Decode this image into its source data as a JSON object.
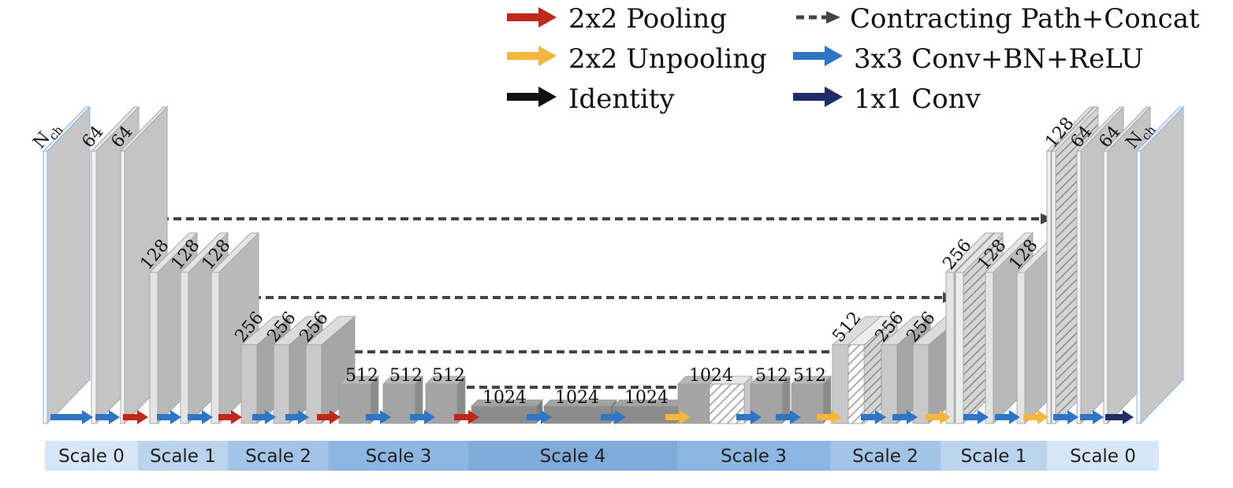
{
  "legend": {
    "pooling": {
      "label": "2x2 Pooling",
      "color": "#c0281b"
    },
    "unpooling": {
      "label": "2x2 Unpooling",
      "color": "#f2b73c"
    },
    "identity": {
      "label": "Identity",
      "color": "#111111"
    },
    "contracting": {
      "label": "Contracting Path+Concat",
      "color": "#444444"
    },
    "conv3": {
      "label": "3x3 Conv+BN+ReLU",
      "color": "#2e76c4"
    },
    "conv1": {
      "label": "1x1 Conv",
      "color": "#1f2d66"
    }
  },
  "channels": {
    "nch": "N",
    "nch_sub": "ch",
    "enc0": [
      "64",
      "64"
    ],
    "enc1": [
      "128",
      "128",
      "128"
    ],
    "enc2": [
      "256",
      "256",
      "256"
    ],
    "enc3": [
      "512",
      "512",
      "512"
    ],
    "bottleneck": [
      "1024",
      "1024",
      "1024"
    ],
    "dec3": [
      "1024",
      "512",
      "512"
    ],
    "dec2": [
      "512",
      "256",
      "256"
    ],
    "dec1": [
      "256",
      "128",
      "128"
    ],
    "dec0": [
      "128",
      "64",
      "64"
    ]
  },
  "scales": [
    {
      "label": "Scale 0",
      "color": "#d6e6f5"
    },
    {
      "label": "Scale 1",
      "color": "#bad4ee"
    },
    {
      "label": "Scale 2",
      "color": "#a2c4e7"
    },
    {
      "label": "Scale 3",
      "color": "#8db7e2"
    },
    {
      "label": "Scale 4",
      "color": "#7fabda"
    },
    {
      "label": "Scale 3",
      "color": "#8db7e2"
    },
    {
      "label": "Scale 2",
      "color": "#a2c4e7"
    },
    {
      "label": "Scale 1",
      "color": "#bad4ee"
    },
    {
      "label": "Scale 0",
      "color": "#d6e6f5"
    }
  ]
}
